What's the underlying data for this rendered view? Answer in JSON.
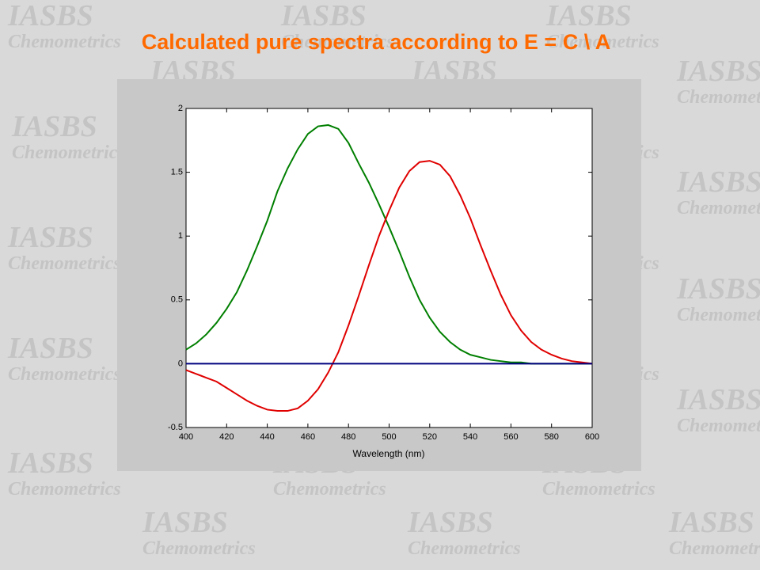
{
  "background_watermark": {
    "line1": "IASBS",
    "line2": "Chemometrics"
  },
  "chart_data": {
    "type": "line",
    "title": "Calculated pure spectra according to E = C \\ A",
    "x_label": "Wavelength  (nm)",
    "x": [
      400,
      405,
      410,
      415,
      420,
      425,
      430,
      435,
      440,
      445,
      450,
      455,
      460,
      465,
      470,
      475,
      480,
      485,
      490,
      495,
      500,
      505,
      510,
      515,
      520,
      525,
      530,
      535,
      540,
      545,
      550,
      555,
      560,
      565,
      570,
      575,
      580,
      585,
      590,
      595,
      600
    ],
    "series": [
      {
        "color": "#007f00",
        "values": [
          0.11,
          0.16,
          0.23,
          0.32,
          0.43,
          0.56,
          0.73,
          0.92,
          1.12,
          1.35,
          1.53,
          1.68,
          1.8,
          1.86,
          1.87,
          1.84,
          1.73,
          1.57,
          1.42,
          1.25,
          1.07,
          0.88,
          0.68,
          0.5,
          0.36,
          0.25,
          0.17,
          0.11,
          0.07,
          0.05,
          0.03,
          0.02,
          0.01,
          0.01,
          0,
          0,
          0,
          0,
          0,
          0,
          0
        ]
      },
      {
        "color": "#e00000",
        "values": [
          -0.05,
          -0.08,
          -0.11,
          -0.14,
          -0.19,
          -0.24,
          -0.29,
          -0.33,
          -0.36,
          -0.37,
          -0.37,
          -0.35,
          -0.29,
          -0.2,
          -0.07,
          0.09,
          0.3,
          0.53,
          0.77,
          1.0,
          1.2,
          1.38,
          1.51,
          1.58,
          1.59,
          1.56,
          1.47,
          1.32,
          1.14,
          0.93,
          0.73,
          0.54,
          0.38,
          0.26,
          0.17,
          0.11,
          0.07,
          0.04,
          0.02,
          0.01,
          0
        ]
      },
      {
        "color": "#00007f",
        "values": [
          0,
          0,
          0,
          0,
          0,
          0,
          0,
          0,
          0,
          0,
          0,
          0,
          0,
          0,
          0,
          0,
          0,
          0,
          0,
          0,
          0,
          0,
          0,
          0,
          0,
          0,
          0,
          0,
          0,
          0,
          0,
          0,
          0,
          0,
          0,
          0,
          0,
          0,
          0,
          0,
          0
        ]
      }
    ],
    "xlim": [
      400,
      600
    ],
    "xticks": [
      400,
      420,
      440,
      460,
      480,
      500,
      520,
      540,
      560,
      580,
      600
    ],
    "ylim": [
      -0.5,
      2
    ],
    "yticks": [
      -0.5,
      0,
      0.5,
      1,
      1.5,
      2
    ]
  }
}
